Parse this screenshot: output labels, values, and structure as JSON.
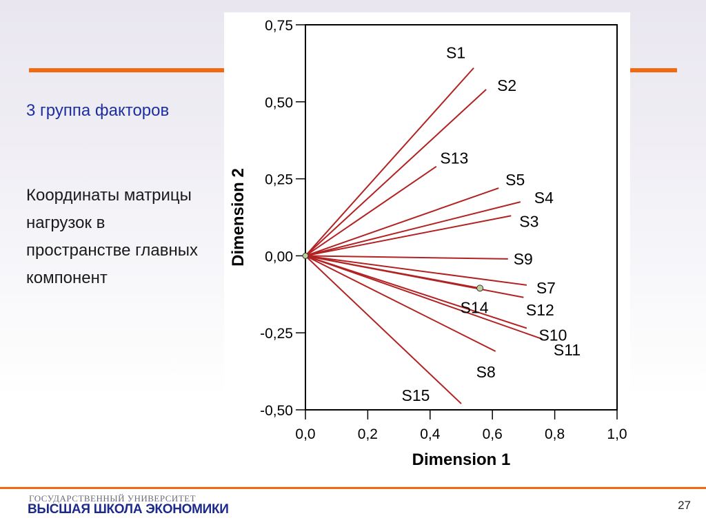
{
  "slide": {
    "heading": "3 группа факторов",
    "body": "Координаты матрицы нагрузок в пространстве главных компонент",
    "footer_top": "ГОСУДАРСТВЕННЫЙ УНИВЕРСИТЕТ",
    "footer_main": "ВЫСШАЯ ШКОЛА ЭКОНОМИКИ",
    "page_number": "27",
    "accent_color": "#f26a0f",
    "heading_color": "#1c2fa0"
  },
  "chart_data": {
    "type": "scatter",
    "title": "",
    "xlabel": "Dimension 1",
    "ylabel": "Dimension 2",
    "xlim": [
      0.0,
      1.0
    ],
    "ylim": [
      -0.5,
      0.75
    ],
    "xticks": [
      "0,0",
      "0,2",
      "0,4",
      "0,6",
      "0,8",
      "1,0"
    ],
    "yticks": [
      "0,75",
      "0,50",
      "0,25",
      "0,00",
      "-0,25",
      "-0,50"
    ],
    "line_color": "#b22222",
    "grid": false,
    "vectors": [
      {
        "label": "S1",
        "x": 0.54,
        "y": 0.61
      },
      {
        "label": "S2",
        "x": 0.58,
        "y": 0.54
      },
      {
        "label": "S13",
        "x": 0.42,
        "y": 0.29
      },
      {
        "label": "S5",
        "x": 0.62,
        "y": 0.22
      },
      {
        "label": "S4",
        "x": 0.69,
        "y": 0.175
      },
      {
        "label": "S3",
        "x": 0.66,
        "y": 0.13
      },
      {
        "label": "S9",
        "x": 0.65,
        "y": -0.01
      },
      {
        "label": "S7",
        "x": 0.71,
        "y": -0.095
      },
      {
        "label": "S14",
        "x": 0.56,
        "y": -0.105
      },
      {
        "label": "S12",
        "x": 0.7,
        "y": -0.135
      },
      {
        "label": "S10",
        "x": 0.71,
        "y": -0.235
      },
      {
        "label": "S11",
        "x": 0.76,
        "y": -0.27
      },
      {
        "label": "S8",
        "x": 0.61,
        "y": -0.31
      },
      {
        "label": "S15",
        "x": 0.5,
        "y": -0.48
      }
    ]
  }
}
